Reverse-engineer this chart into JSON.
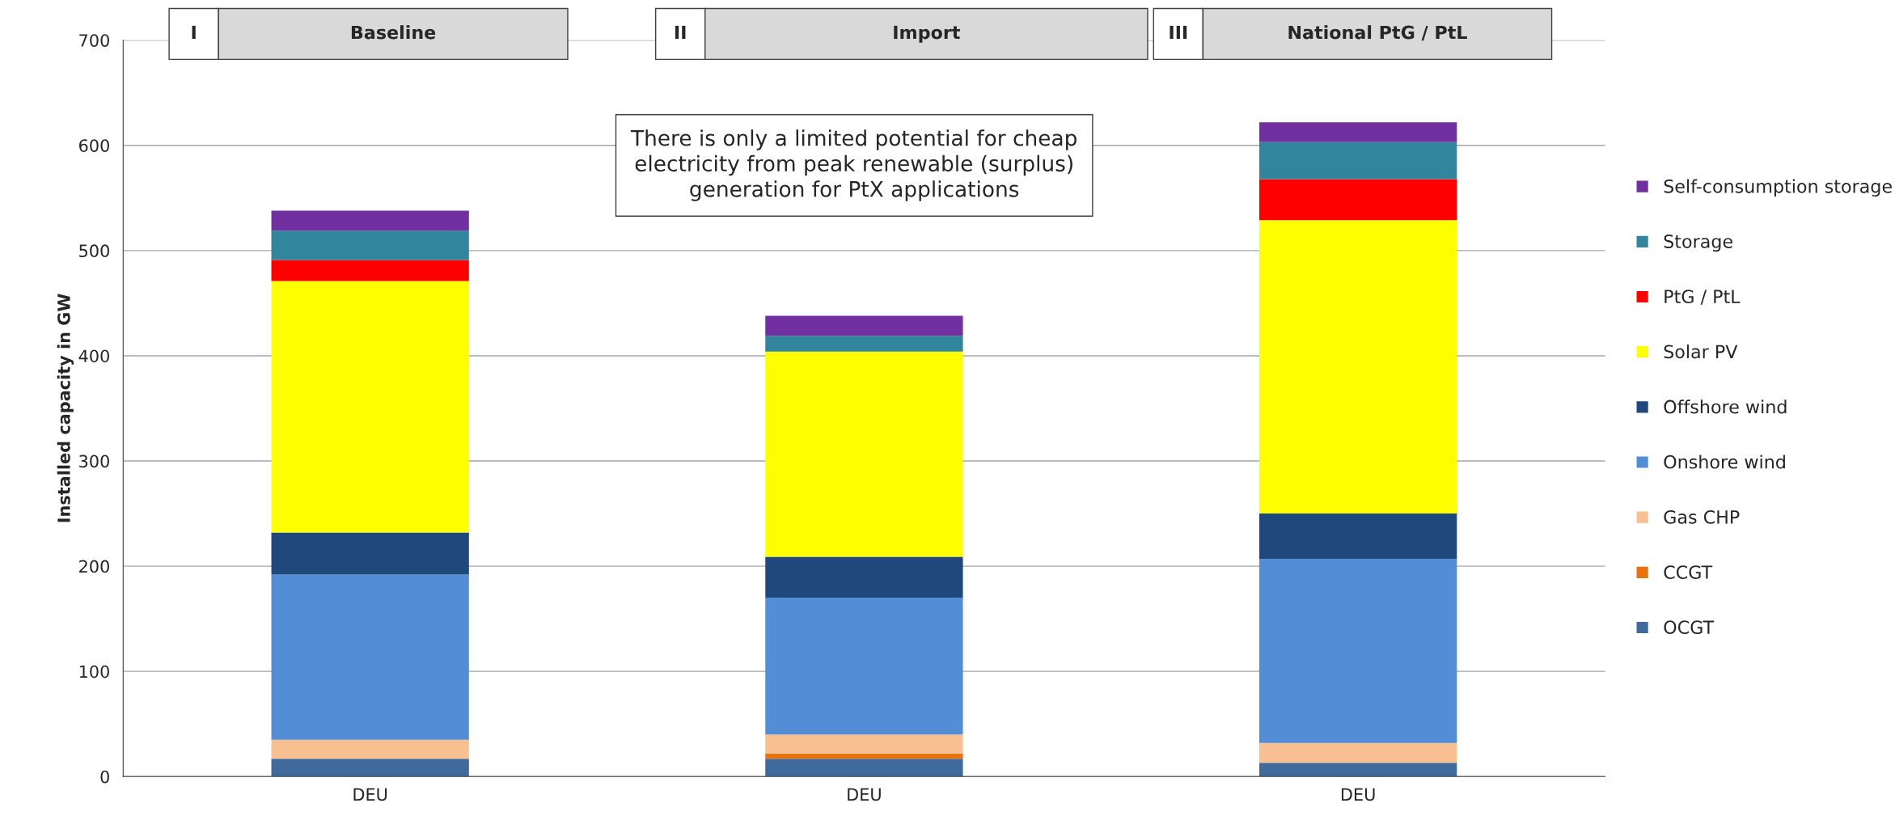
{
  "chart_data": {
    "type": "bar",
    "stacked": true,
    "ylabel": "Installed capacity in GW",
    "categories": [
      "DEU",
      "DEU",
      "DEU"
    ],
    "series": [
      {
        "name": "OCGT",
        "color": "#3f6a9b",
        "values": [
          17,
          17,
          13
        ]
      },
      {
        "name": "CCGT",
        "color": "#e8720c",
        "values": [
          0,
          5,
          0
        ]
      },
      {
        "name": "Gas CHP",
        "color": "#f8c090",
        "values": [
          18,
          18,
          19
        ]
      },
      {
        "name": "Onshore wind",
        "color": "#538dd5",
        "values": [
          157,
          130,
          175
        ]
      },
      {
        "name": "Offshore wind",
        "color": "#1f497d",
        "values": [
          40,
          39,
          43
        ]
      },
      {
        "name": "Solar PV",
        "color": "#ffff00",
        "values": [
          239,
          195,
          279
        ]
      },
      {
        "name": "PtG / PtL",
        "color": "#ff0000",
        "values": [
          20,
          0,
          39
        ]
      },
      {
        "name": "Storage",
        "color": "#31859c",
        "values": [
          28,
          15,
          35
        ]
      },
      {
        "name": "Self-consumption storage",
        "color": "#7030a0",
        "values": [
          19,
          19,
          19
        ]
      }
    ],
    "ylim": [
      0,
      700
    ],
    "yticks": [
      0,
      100,
      200,
      300,
      400,
      500,
      600,
      700
    ],
    "grid": "y",
    "legend": "right",
    "annotations": [
      "I",
      "Baseline",
      "II",
      "Import",
      "III",
      "National PtG / PtL",
      "There is only a limited potential for cheap\nelectricity from peak renewable (surplus)\ngeneration for PtX applications"
    ]
  }
}
